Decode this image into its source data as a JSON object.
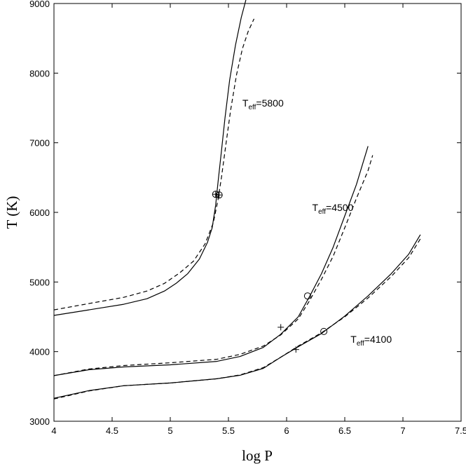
{
  "chart_data": {
    "type": "line",
    "xlabel": "log P",
    "ylabel": "T (K)",
    "xlim": [
      4,
      7.5
    ],
    "ylim": [
      3000,
      9000
    ],
    "xticks": [
      "4",
      "4.5",
      "5",
      "5.5",
      "6",
      "6.5",
      "7",
      "7.5"
    ],
    "yticks": [
      "3000",
      "4000",
      "5000",
      "6000",
      "7000",
      "8000",
      "9000"
    ],
    "grid": false,
    "annotations": [
      {
        "prefix": "T",
        "sub": "eff",
        "suffix": "=5800",
        "x": 5.62,
        "y": 7520
      },
      {
        "prefix": "T",
        "sub": "eff",
        "suffix": "=4500",
        "x": 6.22,
        "y": 6020
      },
      {
        "prefix": "T",
        "sub": "eff",
        "suffix": "=4100",
        "x": 6.55,
        "y": 4130
      }
    ],
    "series": [
      {
        "style": "solid",
        "points": [
          [
            4.0,
            4520
          ],
          [
            4.3,
            4600
          ],
          [
            4.6,
            4680
          ],
          [
            4.8,
            4760
          ],
          [
            4.95,
            4870
          ],
          [
            5.05,
            4980
          ],
          [
            5.15,
            5120
          ],
          [
            5.25,
            5330
          ],
          [
            5.32,
            5570
          ],
          [
            5.36,
            5780
          ],
          [
            5.39,
            6100
          ],
          [
            5.41,
            6430
          ],
          [
            5.44,
            6880
          ],
          [
            5.47,
            7350
          ],
          [
            5.51,
            7900
          ],
          [
            5.56,
            8400
          ],
          [
            5.61,
            8800
          ],
          [
            5.65,
            9050
          ]
        ]
      },
      {
        "style": "dashed",
        "points": [
          [
            4.0,
            4600
          ],
          [
            4.3,
            4690
          ],
          [
            4.6,
            4780
          ],
          [
            4.8,
            4870
          ],
          [
            4.95,
            4980
          ],
          [
            5.08,
            5130
          ],
          [
            5.2,
            5300
          ],
          [
            5.3,
            5550
          ],
          [
            5.37,
            5850
          ],
          [
            5.41,
            6180
          ],
          [
            5.44,
            6500
          ],
          [
            5.48,
            7000
          ],
          [
            5.52,
            7480
          ],
          [
            5.57,
            7980
          ],
          [
            5.62,
            8350
          ],
          [
            5.67,
            8600
          ],
          [
            5.72,
            8780
          ]
        ]
      },
      {
        "style": "solid",
        "points": [
          [
            4.0,
            3655
          ],
          [
            4.3,
            3740
          ],
          [
            4.6,
            3780
          ],
          [
            5.0,
            3810
          ],
          [
            5.4,
            3860
          ],
          [
            5.6,
            3930
          ],
          [
            5.8,
            4060
          ],
          [
            5.95,
            4250
          ],
          [
            6.1,
            4500
          ],
          [
            6.2,
            4800
          ],
          [
            6.3,
            5120
          ],
          [
            6.4,
            5500
          ],
          [
            6.5,
            5950
          ],
          [
            6.6,
            6400
          ],
          [
            6.7,
            6950
          ]
        ]
      },
      {
        "style": "dashed",
        "points": [
          [
            4.0,
            3655
          ],
          [
            4.3,
            3750
          ],
          [
            4.6,
            3800
          ],
          [
            5.0,
            3840
          ],
          [
            5.4,
            3890
          ],
          [
            5.6,
            3960
          ],
          [
            5.8,
            4080
          ],
          [
            5.95,
            4240
          ],
          [
            6.1,
            4470
          ],
          [
            6.2,
            4740
          ],
          [
            6.3,
            5040
          ],
          [
            6.4,
            5370
          ],
          [
            6.5,
            5780
          ],
          [
            6.6,
            6200
          ],
          [
            6.7,
            6600
          ],
          [
            6.74,
            6820
          ]
        ]
      },
      {
        "style": "solid",
        "points": [
          [
            4.0,
            3330
          ],
          [
            4.3,
            3440
          ],
          [
            4.6,
            3510
          ],
          [
            5.0,
            3550
          ],
          [
            5.4,
            3610
          ],
          [
            5.6,
            3660
          ],
          [
            5.8,
            3760
          ],
          [
            5.95,
            3920
          ],
          [
            6.1,
            4070
          ],
          [
            6.3,
            4260
          ],
          [
            6.5,
            4510
          ],
          [
            6.7,
            4800
          ],
          [
            6.9,
            5120
          ],
          [
            7.05,
            5400
          ],
          [
            7.15,
            5680
          ]
        ]
      },
      {
        "style": "dashed",
        "points": [
          [
            4.0,
            3320
          ],
          [
            4.3,
            3435
          ],
          [
            4.6,
            3510
          ],
          [
            5.0,
            3550
          ],
          [
            5.4,
            3610
          ],
          [
            5.6,
            3665
          ],
          [
            5.8,
            3770
          ],
          [
            5.95,
            3920
          ],
          [
            6.1,
            4080
          ],
          [
            6.3,
            4270
          ],
          [
            6.5,
            4500
          ],
          [
            6.7,
            4770
          ],
          [
            6.9,
            5080
          ],
          [
            7.05,
            5350
          ],
          [
            7.15,
            5620
          ]
        ]
      }
    ],
    "markers": [
      {
        "kind": "circle-plus",
        "x": 5.39,
        "y": 6260
      },
      {
        "kind": "circle-plus",
        "x": 5.42,
        "y": 6250
      },
      {
        "kind": "circle",
        "x": 6.18,
        "y": 4800
      },
      {
        "kind": "plus",
        "x": 5.95,
        "y": 4350
      },
      {
        "kind": "circle",
        "x": 6.32,
        "y": 4290
      },
      {
        "kind": "plus",
        "x": 6.08,
        "y": 4030
      }
    ]
  }
}
